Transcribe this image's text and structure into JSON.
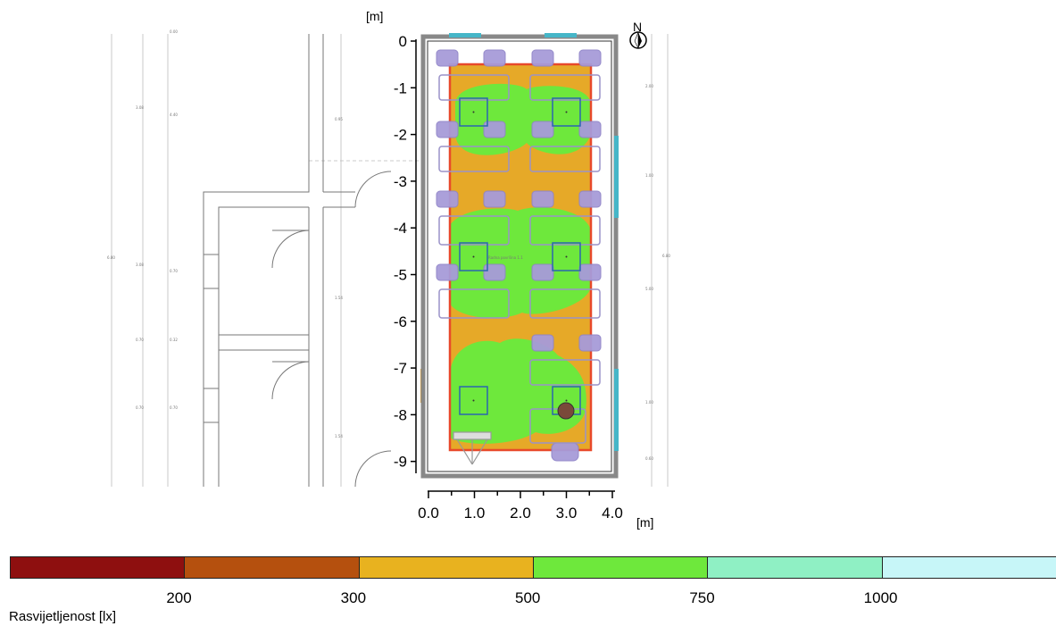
{
  "plan": {
    "y_unit": "[m]",
    "x_unit": "[m]",
    "north": "N",
    "y_ticks": [
      "0",
      "-1",
      "-2",
      "-3",
      "-4",
      "-5",
      "-6",
      "-7",
      "-8",
      "-9"
    ],
    "x_ticks": [
      "0.0",
      "1.0",
      "2.0",
      "3.0",
      "4.0"
    ],
    "room_label": "Radna površina 1.1",
    "colors": {
      "wall": "#888888",
      "floor_warm": "#e6a928",
      "floor_green": "#6ee83c",
      "boundary": "#e8492a",
      "furniture": "#a79bd9",
      "luminaire": "#2a66b0",
      "window": "#46b6c8"
    }
  },
  "legend": {
    "title": "Rasvijetljenost [lx]",
    "colors": [
      "#8e0f0f",
      "#b5500e",
      "#e8b21f",
      "#6ee83c",
      "#8ff0c4",
      "#c7f6f8"
    ],
    "labels": [
      "200",
      "300",
      "500",
      "750",
      "1000"
    ]
  }
}
